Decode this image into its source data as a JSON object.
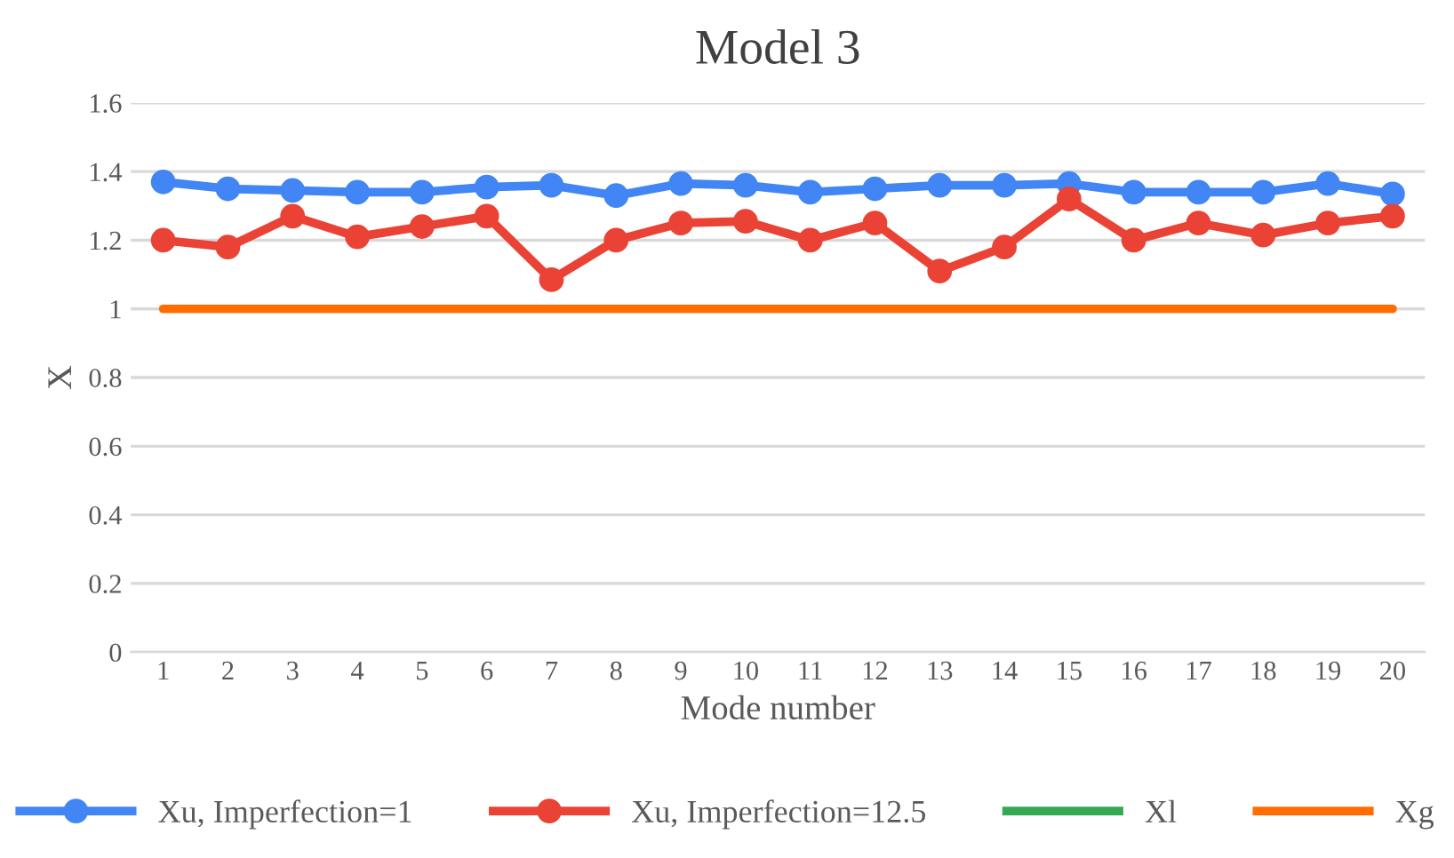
{
  "chart_data": {
    "type": "line",
    "title": "Model 3",
    "xlabel": "Mode number",
    "ylabel": "X",
    "categories": [
      "1",
      "2",
      "3",
      "4",
      "5",
      "6",
      "7",
      "8",
      "9",
      "10",
      "11",
      "12",
      "13",
      "14",
      "15",
      "16",
      "17",
      "18",
      "19",
      "20"
    ],
    "series": [
      {
        "name": "Xu, Imperfection=1",
        "color": "#4285f4",
        "marker": "circle",
        "values": [
          1.37,
          1.35,
          1.345,
          1.34,
          1.34,
          1.355,
          1.36,
          1.33,
          1.365,
          1.36,
          1.34,
          1.35,
          1.36,
          1.36,
          1.365,
          1.34,
          1.34,
          1.34,
          1.365,
          1.335
        ]
      },
      {
        "name": "Xu, Imperfection=12.5",
        "color": "#ea4335",
        "marker": "circle",
        "values": [
          1.2,
          1.18,
          1.27,
          1.21,
          1.24,
          1.27,
          1.085,
          1.2,
          1.25,
          1.255,
          1.2,
          1.25,
          1.11,
          1.18,
          1.32,
          1.2,
          1.25,
          1.215,
          1.25,
          1.27
        ]
      },
      {
        "name": "Xl",
        "color": "#34a853",
        "marker": "none",
        "values": [
          null,
          null,
          null,
          null,
          null,
          null,
          null,
          null,
          null,
          null,
          null,
          null,
          null,
          null,
          null,
          null,
          null,
          null,
          null,
          null
        ]
      },
      {
        "name": "Xg",
        "color": "#ff6d01",
        "marker": "none",
        "values": [
          1,
          1,
          1,
          1,
          1,
          1,
          1,
          1,
          1,
          1,
          1,
          1,
          1,
          1,
          1,
          1,
          1,
          1,
          1,
          1
        ]
      }
    ],
    "ylim": [
      0,
      1.6
    ],
    "yticks": [
      0,
      {
        "value": 0.2,
        "label": "0.2"
      },
      {
        "value": 0.4,
        "label": "0.4"
      },
      {
        "value": 0.6,
        "label": "0.6"
      },
      {
        "value": 0.8,
        "label": "0.8"
      },
      1,
      {
        "value": 1.2,
        "label": "1.2"
      },
      {
        "value": 1.4,
        "label": "1.4"
      },
      {
        "value": 1.6,
        "label": "1.6"
      }
    ],
    "grid": "y",
    "legend": "bottom",
    "line_style": "solid"
  }
}
